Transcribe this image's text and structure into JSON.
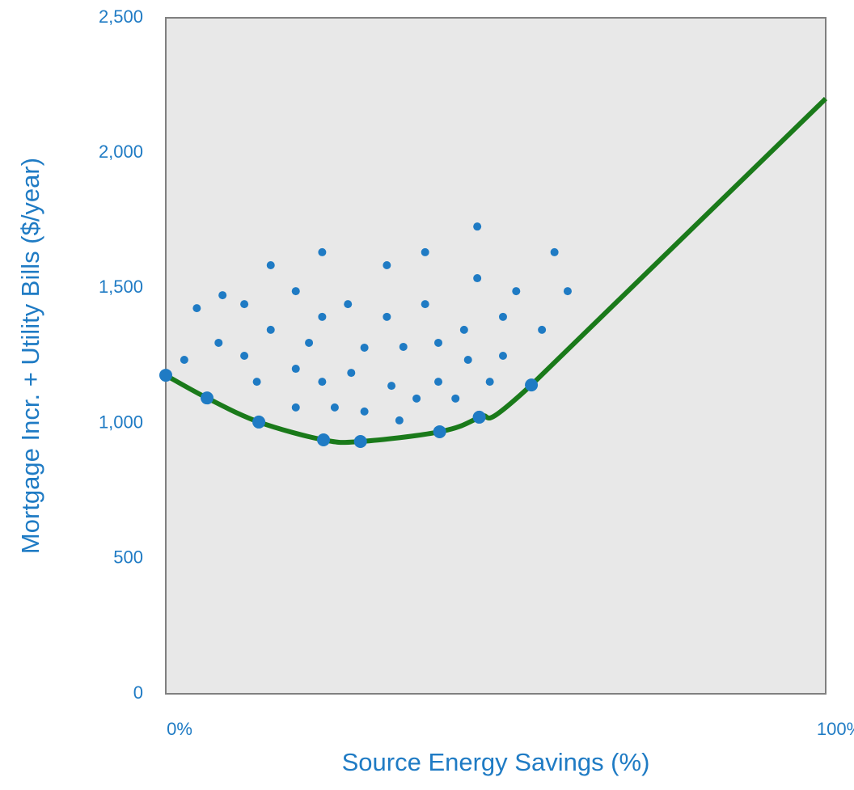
{
  "chart_data": {
    "type": "scatter",
    "xlabel": "Source Energy Savings (%)",
    "ylabel": "Mortgage Incr. + Utility Bills ($/year)",
    "xlim": [
      0,
      100
    ],
    "xticks": [
      {
        "value": 0,
        "label": "0%"
      },
      {
        "value": 100,
        "label": "100%"
      }
    ],
    "ylim": [
      0,
      2500
    ],
    "yticks": [
      0,
      500,
      {
        "value": 1000,
        "label": "1,000"
      },
      {
        "value": 1500,
        "label": "1,500"
      },
      {
        "value": 2000,
        "label": "2,000"
      },
      {
        "value": 2500,
        "label": "2,500"
      }
    ],
    "series": [
      {
        "color": "#1f7bc4",
        "marker_size": 5,
        "line": false,
        "x": [
          2.8,
          4.7,
          8.6,
          11.9,
          8.0,
          11.9,
          13.8,
          15.9,
          15.9,
          19.7,
          19.7,
          19.7,
          21.7,
          23.7,
          23.7,
          23.7,
          25.6,
          27.6,
          28.1,
          30.1,
          30.1,
          33.5,
          33.5,
          34.2,
          35.4,
          36.0,
          38.0,
          39.3,
          39.3,
          41.3,
          41.3,
          43.9,
          45.2,
          45.8,
          47.2,
          47.2,
          49.1,
          51.1,
          51.1,
          53.1,
          57.0,
          58.9,
          60.9
        ],
        "values": [
          1235,
          1426,
          1474,
          1441,
          1298,
          1250,
          1154,
          1585,
          1346,
          1489,
          1202,
          1059,
          1298,
          1633,
          1394,
          1154,
          1059,
          1441,
          1187,
          1280,
          1044,
          1585,
          1394,
          1139,
          1011,
          1283,
          1092,
          1633,
          1441,
          1298,
          1154,
          1092,
          1346,
          1235,
          1728,
          1537,
          1154,
          1394,
          1250,
          1489,
          1346,
          1633,
          1489
        ]
      },
      {
        "color": "#1f7bc4",
        "marker_size": 8,
        "line": false,
        "x": [
          0,
          6.25,
          14.1,
          23.9,
          29.5,
          41.5,
          47.5,
          55.4
        ],
        "values": [
          1178,
          1094,
          1005,
          939,
          933,
          969,
          1023,
          1142
        ]
      },
      {
        "color": "#1a7a1a",
        "line": true,
        "x": [
          0,
          6.25,
          14.1,
          23.9,
          29.5,
          41.5,
          47.5,
          55.4,
          100
        ],
        "values": [
          1178,
          1094,
          1005,
          939,
          933,
          969,
          1023,
          1142,
          2201
        ]
      }
    ]
  }
}
